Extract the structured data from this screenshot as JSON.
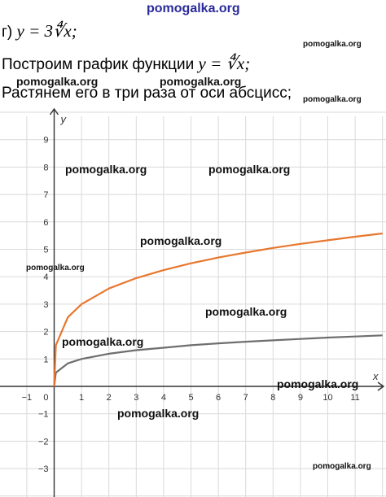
{
  "site_banner": "pomogalka.org",
  "text": {
    "item_label": "г)",
    "item_formula": "y = 3∜x;",
    "line2_text": "Построим график функции",
    "line2_formula": "y = ∜x;",
    "line3_text": "Растянем его в три раза от оси абсцисс;"
  },
  "watermark": "pomogalka.org",
  "chart_data": {
    "type": "line",
    "xlabel": "x",
    "ylabel": "y",
    "xlim": [
      -1.6,
      12
    ],
    "ylim": [
      -4,
      10.2
    ],
    "xticks": [
      -1,
      1,
      2,
      3,
      4,
      5,
      6,
      7,
      8,
      9,
      10,
      11
    ],
    "yticks": [
      -3,
      -2,
      -1,
      1,
      2,
      3,
      4,
      5,
      6,
      7,
      8,
      9
    ],
    "tick_labels": {
      "x": [
        "−1",
        "1",
        "2",
        "3",
        "4",
        "5",
        "6",
        "7",
        "8",
        "9",
        "10",
        "11"
      ],
      "y": [
        "−3",
        "−2",
        "−1",
        "1",
        "2",
        "3",
        "4",
        "5",
        "6",
        "7",
        "8",
        "9"
      ],
      "origin": "0"
    },
    "grid": true,
    "series": [
      {
        "function": "y = ∜x",
        "color": "#6e6e6e",
        "x": [
          0,
          0.0625,
          0.5,
          1,
          2,
          3,
          4,
          5,
          6,
          7,
          8,
          9,
          10,
          11,
          12
        ],
        "y": [
          0,
          0.5,
          0.84,
          1,
          1.19,
          1.32,
          1.41,
          1.5,
          1.57,
          1.63,
          1.68,
          1.73,
          1.78,
          1.82,
          1.86
        ]
      },
      {
        "function": "y = 3∜x",
        "color": "#e8772e",
        "x": [
          0,
          0.0625,
          0.5,
          1,
          2,
          3,
          4,
          5,
          6,
          7,
          8,
          9,
          10,
          11,
          12
        ],
        "y": [
          0,
          1.5,
          2.52,
          3,
          3.57,
          3.95,
          4.24,
          4.49,
          4.7,
          4.88,
          5.05,
          5.2,
          5.33,
          5.46,
          5.58
        ]
      }
    ]
  }
}
